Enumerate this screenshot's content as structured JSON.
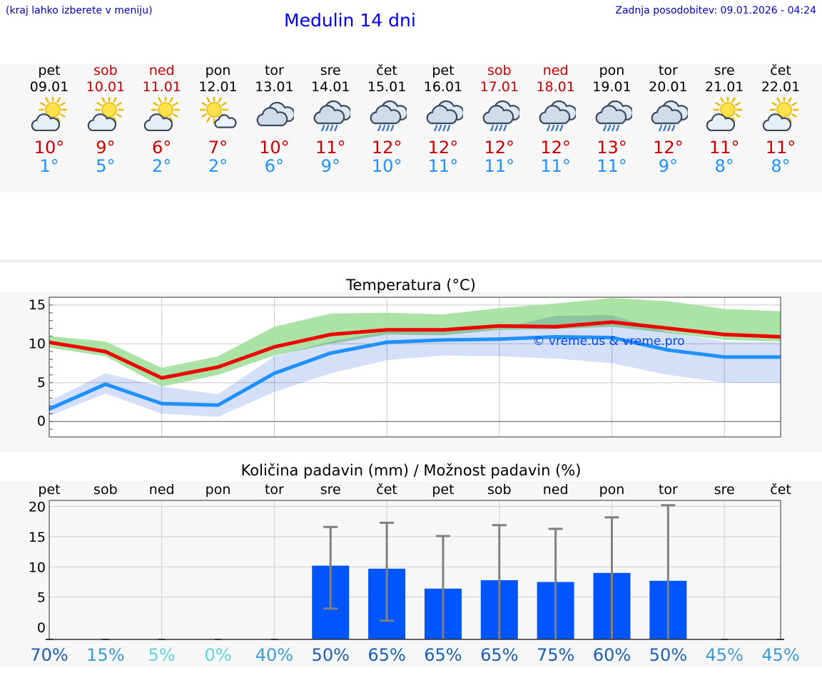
{
  "header": {
    "hint": "(kraj lahko izberete v meniju)",
    "title": "Medulin 14 dni",
    "updated": "Zadnja posodobitev: 09.01.2026 - 04:24"
  },
  "days": [
    {
      "name": "pet",
      "date": "09.01",
      "icon": "sun-cloud-icon",
      "tmax": "10°",
      "tmin": "1°",
      "weekend": false
    },
    {
      "name": "sob",
      "date": "10.01",
      "icon": "sun-cloud-icon",
      "tmax": "9°",
      "tmin": "5°",
      "weekend": true
    },
    {
      "name": "ned",
      "date": "11.01",
      "icon": "sun-cloud-icon",
      "tmax": "6°",
      "tmin": "2°",
      "weekend": true
    },
    {
      "name": "pon",
      "date": "12.01",
      "icon": "sun-small-cloud-icon",
      "tmax": "7°",
      "tmin": "2°",
      "weekend": false
    },
    {
      "name": "tor",
      "date": "13.01",
      "icon": "cloud-icon",
      "tmax": "10°",
      "tmin": "6°",
      "weekend": false
    },
    {
      "name": "sre",
      "date": "14.01",
      "icon": "rain-cloud-icon",
      "tmax": "11°",
      "tmin": "9°",
      "weekend": false
    },
    {
      "name": "čet",
      "date": "15.01",
      "icon": "rain-cloud-icon",
      "tmax": "12°",
      "tmin": "10°",
      "weekend": false
    },
    {
      "name": "pet",
      "date": "16.01",
      "icon": "rain-cloud-icon",
      "tmax": "12°",
      "tmin": "11°",
      "weekend": false
    },
    {
      "name": "sob",
      "date": "17.01",
      "icon": "rain-cloud-icon",
      "tmax": "12°",
      "tmin": "11°",
      "weekend": true
    },
    {
      "name": "ned",
      "date": "18.01",
      "icon": "rain-cloud-icon",
      "tmax": "12°",
      "tmin": "11°",
      "weekend": true
    },
    {
      "name": "pon",
      "date": "19.01",
      "icon": "rain-cloud-icon",
      "tmax": "13°",
      "tmin": "11°",
      "weekend": false
    },
    {
      "name": "tor",
      "date": "20.01",
      "icon": "rain-cloud-icon",
      "tmax": "12°",
      "tmin": "9°",
      "weekend": false
    },
    {
      "name": "sre",
      "date": "21.01",
      "icon": "sun-cloud-icon",
      "tmax": "11°",
      "tmin": "8°",
      "weekend": false
    },
    {
      "name": "čet",
      "date": "22.01",
      "icon": "sun-cloud-icon",
      "tmax": "11°",
      "tmin": "8°",
      "weekend": false
    }
  ],
  "colors": {
    "tmax": "#cc0000",
    "tmin": "#1e90ff",
    "max_line": "#ee0000",
    "min_line": "#1e90ff",
    "max_band": "#a6e0a0",
    "min_band": "#b0c4f4",
    "bar": "#0055ff",
    "whisker": "#808080",
    "prob_high": "#1a5fb4",
    "prob_mid": "#3d9bd6",
    "prob_low": "#5fd4e0"
  },
  "chart_data": [
    {
      "type": "line",
      "title": "Temperatura (°C)",
      "watermark": "© vreme.us & vreme.pro",
      "x": [
        "09.01",
        "10.01",
        "11.01",
        "12.01",
        "13.01",
        "14.01",
        "15.01",
        "16.01",
        "17.01",
        "18.01",
        "19.01",
        "20.01",
        "21.01",
        "22.01"
      ],
      "ylim": [
        -2,
        16
      ],
      "yticks": [
        0,
        5,
        10,
        15
      ],
      "series": [
        {
          "name": "max",
          "values": [
            10.2,
            9.0,
            5.6,
            7.0,
            9.6,
            11.2,
            11.8,
            11.8,
            12.3,
            12.2,
            12.8,
            12.0,
            11.2,
            10.9
          ],
          "band": [
            [
              9.5,
              11.0
            ],
            [
              8.4,
              10.3
            ],
            [
              4.5,
              6.9
            ],
            [
              6.0,
              8.4
            ],
            [
              8.5,
              12.2
            ],
            [
              10.0,
              13.9
            ],
            [
              11.2,
              14.0
            ],
            [
              11.1,
              13.8
            ],
            [
              11.8,
              14.6
            ],
            [
              11.9,
              15.2
            ],
            [
              12.2,
              15.9
            ],
            [
              11.4,
              15.5
            ],
            [
              10.5,
              14.5
            ],
            [
              10.3,
              14.2
            ]
          ]
        },
        {
          "name": "min",
          "values": [
            1.6,
            4.8,
            2.3,
            2.1,
            6.2,
            8.8,
            10.2,
            10.5,
            10.6,
            10.9,
            10.8,
            9.2,
            8.3,
            8.3
          ],
          "band": [
            [
              0.7,
              2.6
            ],
            [
              3.6,
              6.2
            ],
            [
              1.0,
              4.5
            ],
            [
              0.6,
              3.5
            ],
            [
              3.8,
              8.4
            ],
            [
              6.2,
              10.3
            ],
            [
              7.9,
              11.6
            ],
            [
              8.5,
              11.6
            ],
            [
              8.4,
              12.0
            ],
            [
              8.1,
              13.6
            ],
            [
              7.5,
              13.7
            ],
            [
              6.0,
              11.5
            ],
            [
              5.0,
              10.3
            ],
            [
              5.0,
              10.2
            ]
          ]
        }
      ]
    },
    {
      "type": "bar",
      "title": "Količina padavin (mm) / Možnost padavin (%)",
      "categories": [
        "pet",
        "sob",
        "ned",
        "pon",
        "tor",
        "sre",
        "čet",
        "pet",
        "sob",
        "ned",
        "pon",
        "tor",
        "sre",
        "čet"
      ],
      "values": [
        0,
        0,
        0,
        0,
        0,
        10.2,
        9.7,
        6.4,
        7.8,
        7.5,
        9.0,
        7.7,
        0,
        0
      ],
      "errors": [
        null,
        null,
        null,
        null,
        null,
        [
          3.1,
          16.6
        ],
        [
          1.1,
          17.3
        ],
        null,
        [
          null,
          16.9
        ],
        [
          null,
          16.3
        ],
        [
          null,
          18.2
        ],
        [
          null,
          20.2
        ],
        null,
        null
      ],
      "error_high": [
        0,
        0,
        0,
        0,
        0,
        16.6,
        17.3,
        15.1,
        16.9,
        16.3,
        18.2,
        20.2,
        0,
        0
      ],
      "error_low": [
        0,
        0,
        0,
        0,
        0,
        3.1,
        1.1,
        0,
        0,
        0,
        0,
        0,
        0,
        0
      ],
      "ylim": [
        -2,
        21
      ],
      "yticks": [
        0,
        5,
        10,
        15,
        20
      ],
      "probabilities": [
        "70%",
        "15%",
        "5%",
        "0%",
        "40%",
        "50%",
        "65%",
        "65%",
        "65%",
        "75%",
        "60%",
        "50%",
        "45%",
        "45%"
      ]
    }
  ]
}
